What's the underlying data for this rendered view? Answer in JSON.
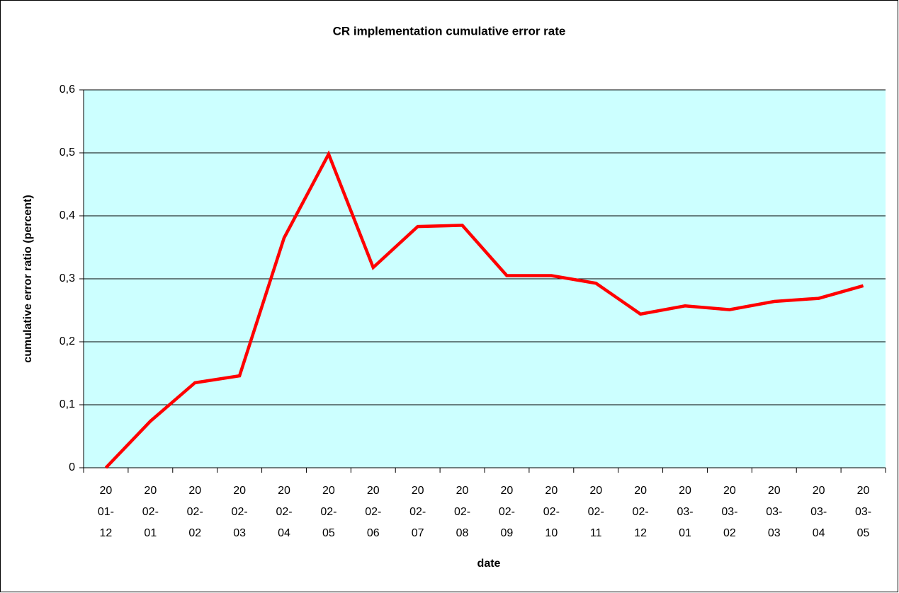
{
  "chart_data": {
    "type": "line",
    "title": "CR implementation cumulative error rate",
    "x_label": "date",
    "y_label": "cumulative error ratio (percent)",
    "categories": [
      "2001-12",
      "2002-01",
      "2002-02",
      "2002-03",
      "2002-04",
      "2002-05",
      "2002-06",
      "2002-07",
      "2002-08",
      "2002-09",
      "2002-10",
      "2002-11",
      "2002-12",
      "2003-01",
      "2003-02",
      "2003-03",
      "2003-04",
      "2003-05"
    ],
    "series": [
      {
        "name": "cumulative error ratio",
        "color": "#ff0000",
        "values": [
          0,
          0.074,
          0.135,
          0.146,
          0.365,
          0.498,
          0.318,
          0.383,
          0.385,
          0.305,
          0.305,
          0.293,
          0.244,
          0.257,
          0.251,
          0.264,
          0.269,
          0.289
        ]
      }
    ],
    "ylim": [
      0,
      0.6
    ],
    "yticks": [
      0,
      {
        "value": 0.1,
        "label": "0,1"
      },
      {
        "value": 0.2,
        "label": "0,2"
      },
      {
        "value": 0.3,
        "label": "0,3"
      },
      {
        "value": 0.4,
        "label": "0,4"
      },
      {
        "value": 0.5,
        "label": "0,5"
      },
      {
        "value": 0.6,
        "label": "0,6"
      }
    ],
    "grid": true,
    "background": "#ccffff"
  }
}
